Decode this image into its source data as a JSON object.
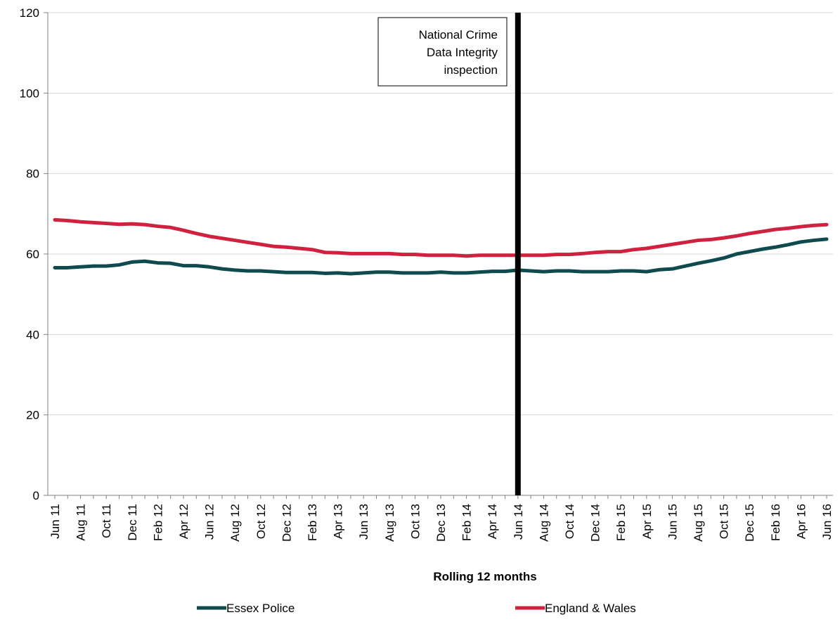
{
  "chart_data": {
    "type": "line",
    "title": "",
    "xlabel": "Rolling 12 months",
    "ylabel": "",
    "ylim": [
      0,
      120
    ],
    "yticks": [
      0,
      20,
      40,
      60,
      80,
      100,
      120
    ],
    "grid": true,
    "legend_position": "bottom",
    "x": [
      "Jun 11",
      "Jul 11",
      "Aug 11",
      "Sep 11",
      "Oct 11",
      "Nov 11",
      "Dec 11",
      "Jan 12",
      "Feb 12",
      "Mar 12",
      "Apr 12",
      "May 12",
      "Jun 12",
      "Jul 12",
      "Aug 12",
      "Sep 12",
      "Oct 12",
      "Nov 12",
      "Dec 12",
      "Jan 13",
      "Feb 13",
      "Mar 13",
      "Apr 13",
      "May 13",
      "Jun 13",
      "Jul 13",
      "Aug 13",
      "Sep 13",
      "Oct 13",
      "Nov 13",
      "Dec 13",
      "Jan 14",
      "Feb 14",
      "Mar 14",
      "Apr 14",
      "May 14",
      "Jun 14",
      "Jul 14",
      "Aug 14",
      "Sep 14",
      "Oct 14",
      "Nov 14",
      "Dec 14",
      "Jan 15",
      "Feb 15",
      "Mar 15",
      "Apr 15",
      "May 15",
      "Jun 15",
      "Jul 15",
      "Aug 15",
      "Sep 15",
      "Oct 15",
      "Nov 15",
      "Dec 15",
      "Jan 16",
      "Feb 16",
      "Mar 16",
      "Apr 16",
      "May 16",
      "Jun 16"
    ],
    "tick_labels": [
      "Jun 11",
      "Aug 11",
      "Oct 11",
      "Dec 11",
      "Feb 12",
      "Apr 12",
      "Jun 12",
      "Aug 12",
      "Oct 12",
      "Dec 12",
      "Feb 13",
      "Apr 13",
      "Jun 13",
      "Aug 13",
      "Oct 13",
      "Dec 13",
      "Feb 14",
      "Apr 14",
      "Jun 14",
      "Aug 14",
      "Oct 14",
      "Dec 14",
      "Feb 15",
      "Apr 15",
      "Jun 15",
      "Aug 15",
      "Oct 15",
      "Dec 15",
      "Feb 16",
      "Apr 16",
      "Jun 16"
    ],
    "series": [
      {
        "name": "Essex Police",
        "color": "#0f4a4f",
        "values": [
          56.6,
          56.6,
          56.8,
          57.0,
          57.0,
          57.3,
          58.0,
          58.2,
          57.8,
          57.7,
          57.1,
          57.1,
          56.8,
          56.3,
          56.0,
          55.8,
          55.8,
          55.6,
          55.4,
          55.4,
          55.4,
          55.2,
          55.3,
          55.1,
          55.3,
          55.5,
          55.5,
          55.3,
          55.3,
          55.3,
          55.5,
          55.3,
          55.3,
          55.5,
          55.7,
          55.7,
          56.0,
          55.8,
          55.6,
          55.8,
          55.8,
          55.6,
          55.6,
          55.6,
          55.8,
          55.8,
          55.6,
          56.1,
          56.3,
          57.0,
          57.7,
          58.3,
          59.0,
          60.0,
          60.6,
          61.2,
          61.7,
          62.3,
          63.0,
          63.4,
          63.7
        ]
      },
      {
        "name": "England & Wales",
        "color": "#d0213f",
        "values": [
          68.5,
          68.3,
          68.0,
          67.8,
          67.6,
          67.4,
          67.5,
          67.3,
          66.9,
          66.6,
          65.9,
          65.1,
          64.4,
          63.9,
          63.4,
          62.9,
          62.4,
          61.9,
          61.7,
          61.4,
          61.1,
          60.4,
          60.3,
          60.1,
          60.1,
          60.1,
          60.1,
          59.9,
          59.9,
          59.7,
          59.7,
          59.7,
          59.5,
          59.7,
          59.7,
          59.7,
          59.7,
          59.7,
          59.7,
          59.9,
          59.9,
          60.1,
          60.4,
          60.6,
          60.6,
          61.1,
          61.4,
          61.9,
          62.4,
          62.9,
          63.4,
          63.6,
          64.0,
          64.5,
          65.1,
          65.6,
          66.1,
          66.4,
          66.8,
          67.1,
          67.3
        ]
      }
    ],
    "annotation": {
      "x": "Jun 14",
      "lines": [
        "National Crime",
        "Data Integrity",
        "inspection"
      ]
    }
  }
}
